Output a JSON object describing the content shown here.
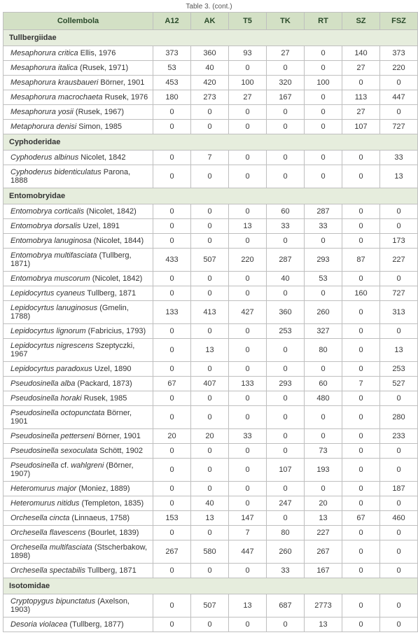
{
  "caption": "Table 3. (cont.)",
  "columns": [
    "Collembola",
    "A12",
    "AK",
    "T5",
    "TK",
    "RT",
    "SZ",
    "FSZ"
  ],
  "sections": [
    {
      "title": "Tullbergiidae",
      "rows": [
        {
          "sci": "Mesaphorura critica",
          "auth": " Ellis, 1976",
          "vals": [
            373,
            360,
            93,
            27,
            0,
            140,
            373
          ]
        },
        {
          "sci": "Mesaphorura italica",
          "auth": " (Rusek, 1971)",
          "vals": [
            53,
            40,
            0,
            0,
            0,
            27,
            220
          ]
        },
        {
          "sci": "Mesaphorura krausbaueri",
          "auth": " Börner, 1901",
          "vals": [
            453,
            420,
            100,
            320,
            100,
            0,
            0
          ]
        },
        {
          "sci": "Mesaphorura macrochaeta",
          "auth": " Rusek, 1976",
          "vals": [
            180,
            273,
            27,
            167,
            0,
            113,
            447
          ]
        },
        {
          "sci": "Mesaphorura yosii",
          "auth": " (Rusek, 1967)",
          "vals": [
            0,
            0,
            0,
            0,
            0,
            27,
            0
          ]
        },
        {
          "sci": "Metaphorura denisi",
          "auth": " Simon, 1985",
          "vals": [
            0,
            0,
            0,
            0,
            0,
            107,
            727
          ]
        }
      ]
    },
    {
      "title": "Cyphoderidae",
      "rows": [
        {
          "sci": "Cyphoderus albinus",
          "auth": " Nicolet, 1842",
          "vals": [
            0,
            7,
            0,
            0,
            0,
            0,
            33
          ]
        },
        {
          "sci": "Cyphoderus bidenticulatus",
          "auth": " Parona, 1888",
          "vals": [
            0,
            0,
            0,
            0,
            0,
            0,
            13
          ]
        }
      ]
    },
    {
      "title": "Entomobryidae",
      "rows": [
        {
          "sci": "Entomobrya corticalis",
          "auth": " (Nicolet, 1842)",
          "vals": [
            0,
            0,
            0,
            60,
            287,
            0,
            0
          ]
        },
        {
          "sci": "Entomobrya dorsalis",
          "auth": " Uzel, 1891",
          "vals": [
            0,
            0,
            13,
            33,
            33,
            0,
            0
          ]
        },
        {
          "sci": "Entomobrya lanuginosa",
          "auth": " (Nicolet, 1844)",
          "vals": [
            0,
            0,
            0,
            0,
            0,
            0,
            173
          ]
        },
        {
          "sci": "Entomobrya multifasciata",
          "auth": " (Tullberg, 1871)",
          "vals": [
            433,
            507,
            220,
            287,
            293,
            87,
            227
          ]
        },
        {
          "sci": "Entomobrya muscorum",
          "auth": " (Nicolet, 1842)",
          "vals": [
            0,
            0,
            0,
            40,
            53,
            0,
            0
          ]
        },
        {
          "sci": "Lepidocyrtus cyaneus",
          "auth": " Tullberg, 1871",
          "vals": [
            0,
            0,
            0,
            0,
            0,
            160,
            727
          ]
        },
        {
          "sci": "Lepidocyrtus lanuginosus",
          "auth": " (Gmelin, 1788)",
          "vals": [
            133,
            413,
            427,
            360,
            260,
            0,
            313
          ]
        },
        {
          "sci": "Lepidocyrtus lignorum",
          "auth": " (Fabricius, 1793)",
          "vals": [
            0,
            0,
            0,
            253,
            327,
            0,
            0
          ]
        },
        {
          "sci": "Lepidocyrtus nigrescens",
          "auth": " Szeptyczki, 1967",
          "vals": [
            0,
            13,
            0,
            0,
            80,
            0,
            13
          ]
        },
        {
          "sci": "Lepidocyrtus paradoxus",
          "auth": " Uzel, 1890",
          "vals": [
            0,
            0,
            0,
            0,
            0,
            0,
            253
          ]
        },
        {
          "sci": "Pseudosinella alba",
          "auth": " (Packard, 1873)",
          "vals": [
            67,
            407,
            133,
            293,
            60,
            7,
            527
          ]
        },
        {
          "sci": "Pseudosinella horaki",
          "auth": " Rusek, 1985",
          "vals": [
            0,
            0,
            0,
            0,
            480,
            0,
            0
          ]
        },
        {
          "sci": "Pseudosinella octopunctata",
          "auth": " Börner, 1901",
          "vals": [
            0,
            0,
            0,
            0,
            0,
            0,
            280
          ]
        },
        {
          "sci": "Pseudosinella petterseni",
          "auth": " Börner, 1901",
          "vals": [
            20,
            20,
            33,
            0,
            0,
            0,
            233
          ]
        },
        {
          "sci": "Pseudosinella sexoculata",
          "auth": " Schött, 1902",
          "vals": [
            0,
            0,
            0,
            0,
            73,
            0,
            0
          ]
        },
        {
          "sci": "Pseudosinella",
          "auth2": " cf. ",
          "sci2": "wahlgreni",
          "auth3": " (Börner, 1907)",
          "vals": [
            0,
            0,
            0,
            107,
            193,
            0,
            0
          ]
        },
        {
          "sci": "Heteromurus major",
          "auth": " (Moniez, 1889)",
          "vals": [
            0,
            0,
            0,
            0,
            0,
            0,
            187
          ]
        },
        {
          "sci": "Heteromurus nitidus",
          "auth": " (Templeton, 1835)",
          "vals": [
            0,
            40,
            0,
            247,
            20,
            0,
            0
          ]
        },
        {
          "sci": "Orchesella cincta",
          "auth": " (Linnaeus, 1758)",
          "vals": [
            153,
            13,
            147,
            0,
            13,
            67,
            460
          ]
        },
        {
          "sci": "Orchesella flavescens",
          "auth": " (Bourlet, 1839)",
          "vals": [
            0,
            0,
            7,
            80,
            227,
            0,
            0
          ]
        },
        {
          "sci": "Orchesella multifasciata",
          "auth": " (Stscherbakow, 1898)",
          "vals": [
            267,
            580,
            447,
            260,
            267,
            0,
            0
          ]
        },
        {
          "sci": "Orchesella spectabilis",
          "auth": " Tullberg, 1871",
          "vals": [
            0,
            0,
            0,
            33,
            167,
            0,
            0
          ]
        }
      ]
    },
    {
      "title": "Isotomidae",
      "rows": [
        {
          "sci": "Cryptopygus bipunctatus",
          "auth": " (Axelson, 1903)",
          "vals": [
            0,
            507,
            13,
            687,
            2773,
            0,
            0
          ]
        },
        {
          "sci": "Desoria violacea",
          "auth": " (Tullberg, 1877)",
          "vals": [
            0,
            0,
            0,
            0,
            13,
            0,
            0
          ]
        }
      ]
    }
  ],
  "style": {
    "header_bg": "#d3e0c5",
    "group_bg": "#e6eddd",
    "border_color": "#bfbfbf",
    "body_bg": "#ffffff",
    "font_family": "Arial",
    "caption_fontsize": 10,
    "cell_fontsize": 11,
    "header_fontsize": 11
  }
}
